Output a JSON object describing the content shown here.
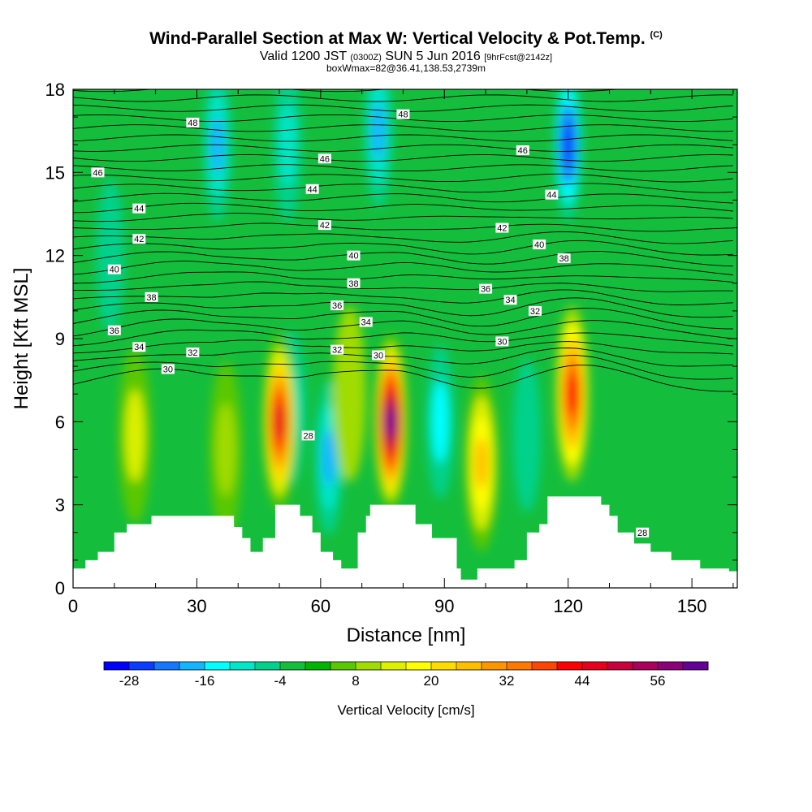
{
  "title": {
    "main": "Wind-Parallel Section at Max W: Vertical Velocity & Pot.Temp.",
    "mark": "(C)",
    "valid_prefix": "Valid 1200 JST",
    "valid_utc": "(0300Z)",
    "valid_date": "SUN 5 Jun 2016",
    "forecast": "[9hrFcst@2142z]",
    "box": "boxWmax=82@36.41,138.53,2739m"
  },
  "chart_data": {
    "type": "heatmap",
    "xlabel": "Distance [nm]",
    "ylabel": "Height [Kft MSL]",
    "xlim": [
      0,
      161
    ],
    "ylim": [
      0,
      18
    ],
    "x_ticks": [
      0,
      30,
      60,
      90,
      120,
      150
    ],
    "y_ticks": [
      0,
      3,
      6,
      9,
      12,
      15,
      18
    ],
    "colorbar": {
      "label": "Vertical Velocity [cm/s]",
      "levels_min": -32,
      "levels_step": 4,
      "tick_labels": [
        "-28",
        "-16",
        "-4",
        "8",
        "20",
        "32",
        "44",
        "56"
      ],
      "colors": [
        "#0000ff",
        "#0a3cff",
        "#1478ff",
        "#14b4ff",
        "#00ffff",
        "#00e6c8",
        "#00d28c",
        "#14be3c",
        "#00b400",
        "#5ac800",
        "#a0dc00",
        "#dcf000",
        "#ffff00",
        "#ffdc00",
        "#ffbe00",
        "#ff9600",
        "#ff7800",
        "#ff4600",
        "#ff0000",
        "#e6001e",
        "#c8003c",
        "#aa005a",
        "#8c0078",
        "#640096"
      ]
    },
    "updrafts": [
      {
        "x": 50,
        "y": 6.0,
        "peak_w": 44
      },
      {
        "x": 77,
        "y": 6.0,
        "peak_w": 60
      },
      {
        "x": 99,
        "y": 4.5,
        "peak_w": 26
      },
      {
        "x": 121,
        "y": 7.0,
        "peak_w": 40
      },
      {
        "x": 15,
        "y": 5.5,
        "peak_w": 12
      },
      {
        "x": 37,
        "y": 5.0,
        "peak_w": 10
      },
      {
        "x": 67,
        "y": 7.0,
        "peak_w": 8
      }
    ],
    "downdrafts": [
      {
        "x": 53,
        "y": 6.5,
        "peak_w": -12
      },
      {
        "x": 62,
        "y": 4.7,
        "peak_w": -18
      },
      {
        "x": 89,
        "y": 6.0,
        "peak_w": -14
      },
      {
        "x": 110,
        "y": 5.5,
        "peak_w": -6
      },
      {
        "x": 52,
        "y": 16.0,
        "peak_w": -10
      },
      {
        "x": 35,
        "y": 16.0,
        "peak_w": -18
      },
      {
        "x": 74,
        "y": 16.5,
        "peak_w": -18
      },
      {
        "x": 120,
        "y": 16.0,
        "peak_w": -28
      },
      {
        "x": 9,
        "y": 12.0,
        "peak_w": -6
      }
    ],
    "terrain": {
      "x": [
        0,
        3,
        6,
        10,
        13,
        19,
        29,
        39,
        41,
        43,
        46,
        49,
        55,
        58,
        60,
        63,
        65,
        69,
        71,
        72,
        81,
        83,
        87,
        93,
        94,
        96,
        98,
        105,
        107,
        110,
        113,
        115,
        124,
        128,
        130,
        132,
        136,
        140,
        145,
        152,
        159,
        161
      ],
      "height": [
        0.7,
        1.0,
        1.3,
        2.0,
        2.3,
        2.6,
        2.6,
        2.2,
        1.8,
        1.3,
        1.8,
        3.0,
        2.6,
        2.0,
        1.3,
        1.0,
        0.7,
        2.0,
        2.6,
        3.0,
        3.0,
        2.3,
        1.8,
        0.7,
        0.3,
        0.3,
        0.7,
        0.7,
        1.0,
        2.0,
        2.3,
        3.3,
        3.3,
        3.0,
        2.6,
        2.0,
        1.6,
        1.3,
        1.0,
        0.7,
        0.6,
        0.6
      ]
    },
    "theta_labels": [
      {
        "text": "48",
        "x": 29,
        "y": 16.8
      },
      {
        "text": "48",
        "x": 80,
        "y": 17.1
      },
      {
        "text": "46",
        "x": 6,
        "y": 15.0
      },
      {
        "text": "46",
        "x": 61,
        "y": 15.5
      },
      {
        "text": "46",
        "x": 109,
        "y": 15.8
      },
      {
        "text": "44",
        "x": 16,
        "y": 13.7
      },
      {
        "text": "44",
        "x": 58,
        "y": 14.4
      },
      {
        "text": "44",
        "x": 116,
        "y": 14.2
      },
      {
        "text": "42",
        "x": 16,
        "y": 12.6
      },
      {
        "text": "42",
        "x": 61,
        "y": 13.1
      },
      {
        "text": "42",
        "x": 104,
        "y": 13.0
      },
      {
        "text": "40",
        "x": 10,
        "y": 11.5
      },
      {
        "text": "40",
        "x": 68,
        "y": 12.0
      },
      {
        "text": "40",
        "x": 113,
        "y": 12.4
      },
      {
        "text": "38",
        "x": 19,
        "y": 10.5
      },
      {
        "text": "38",
        "x": 68,
        "y": 11.0
      },
      {
        "text": "38",
        "x": 119,
        "y": 11.9
      },
      {
        "text": "36",
        "x": 10,
        "y": 9.3
      },
      {
        "text": "36",
        "x": 64,
        "y": 10.2
      },
      {
        "text": "36",
        "x": 100,
        "y": 10.8
      },
      {
        "text": "34",
        "x": 16,
        "y": 8.7
      },
      {
        "text": "34",
        "x": 71,
        "y": 9.6
      },
      {
        "text": "34",
        "x": 106,
        "y": 10.4
      },
      {
        "text": "32",
        "x": 29,
        "y": 8.5
      },
      {
        "text": "32",
        "x": 64,
        "y": 8.6
      },
      {
        "text": "32",
        "x": 112,
        "y": 10.0
      },
      {
        "text": "30",
        "x": 23,
        "y": 7.9
      },
      {
        "text": "30",
        "x": 74,
        "y": 8.4
      },
      {
        "text": "30",
        "x": 104,
        "y": 8.9
      },
      {
        "text": "28",
        "x": 57,
        "y": 5.5
      },
      {
        "text": "28",
        "x": 138,
        "y": 2.0
      }
    ]
  }
}
